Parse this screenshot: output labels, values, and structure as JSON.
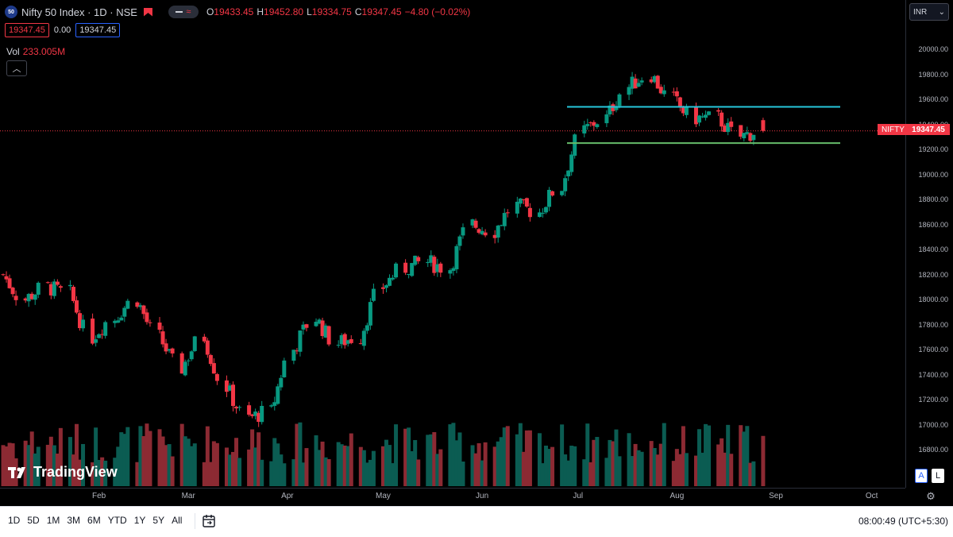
{
  "header": {
    "symbol_badge": "50",
    "symbol_title": "Nifty 50 Index · 1D · NSE",
    "ohlc": {
      "o_label": "O",
      "o_value": "19433.45",
      "h_label": "H",
      "h_value": "19452.80",
      "l_label": "L",
      "l_value": "19334.75",
      "c_label": "C",
      "c_value": "19347.45",
      "change": "−4.80 (−0.02%)"
    },
    "bid": "19347.45",
    "spread": "0.00",
    "ask": "19347.45",
    "volume_label": "Vol",
    "volume_value": "233.005M",
    "currency": "INR"
  },
  "price_scale": {
    "ticks": [
      "20000.00",
      "19800.00",
      "19600.00",
      "19400.00",
      "19200.00",
      "19000.00",
      "18800.00",
      "18600.00",
      "18400.00",
      "18200.00",
      "18000.00",
      "17800.00",
      "17600.00",
      "17400.00",
      "17200.00",
      "17000.00",
      "16800.00"
    ],
    "last_price": "19347.45",
    "last_label": "NIFTY"
  },
  "time_axis": {
    "months": [
      "Feb",
      "Mar",
      "Apr",
      "May",
      "Jun",
      "Jul",
      "Aug",
      "Sep",
      "Oct"
    ]
  },
  "watermark": "TradingView",
  "scale_buttons": {
    "auto": "A",
    "log": "L"
  },
  "bottom_bar": {
    "ranges": [
      "1D",
      "5D",
      "1M",
      "3M",
      "6M",
      "YTD",
      "1Y",
      "5Y",
      "All"
    ],
    "clock": "08:00:49 (UTC+5:30)"
  },
  "colors": {
    "up": "#089981",
    "down": "#f23645",
    "resistance_line": "#26c6da",
    "support_line": "#66bb6a",
    "background": "#000000"
  },
  "icons": {
    "compare": "chevron-up-icon",
    "calendar": "calendar-range-icon",
    "settings": "gear-icon"
  },
  "chart_data": {
    "type": "candlestick",
    "anchors": [
      {
        "date": "2023-01-02",
        "close": 18200
      },
      {
        "date": "2023-01-09",
        "close": 18000
      },
      {
        "date": "2023-01-16",
        "close": 18100
      },
      {
        "date": "2023-01-23",
        "close": 18050
      },
      {
        "date": "2023-01-30",
        "close": 17700
      },
      {
        "date": "2023-02-06",
        "close": 17850
      },
      {
        "date": "2023-02-13",
        "close": 18000
      },
      {
        "date": "2023-02-20",
        "close": 17700
      },
      {
        "date": "2023-02-27",
        "close": 17450
      },
      {
        "date": "2023-03-06",
        "close": 17700
      },
      {
        "date": "2023-03-13",
        "close": 17300
      },
      {
        "date": "2023-03-20",
        "close": 17050
      },
      {
        "date": "2023-03-27",
        "close": 17100
      },
      {
        "date": "2023-04-03",
        "close": 17600
      },
      {
        "date": "2023-04-10",
        "close": 17850
      },
      {
        "date": "2023-04-17",
        "close": 17650
      },
      {
        "date": "2023-04-24",
        "close": 17700
      },
      {
        "date": "2023-05-01",
        "close": 18100
      },
      {
        "date": "2023-05-08",
        "close": 18250
      },
      {
        "date": "2023-05-15",
        "close": 18300
      },
      {
        "date": "2023-05-22",
        "close": 18250
      },
      {
        "date": "2023-05-29",
        "close": 18600
      },
      {
        "date": "2023-06-05",
        "close": 18550
      },
      {
        "date": "2023-06-12",
        "close": 18750
      },
      {
        "date": "2023-06-19",
        "close": 18700
      },
      {
        "date": "2023-06-26",
        "close": 18900
      },
      {
        "date": "2023-07-03",
        "close": 19350
      },
      {
        "date": "2023-07-10",
        "close": 19450
      },
      {
        "date": "2023-07-17",
        "close": 19700
      },
      {
        "date": "2023-07-24",
        "close": 19800
      },
      {
        "date": "2023-07-31",
        "close": 19600
      },
      {
        "date": "2023-08-07",
        "close": 19450
      },
      {
        "date": "2023-08-14",
        "close": 19450
      },
      {
        "date": "2023-08-21",
        "close": 19300
      },
      {
        "date": "2023-08-28",
        "close": 19347.45
      }
    ],
    "horizontal_lines": [
      {
        "name": "resistance",
        "value": 19540,
        "color": "#26c6da"
      },
      {
        "name": "support",
        "value": 19250,
        "color": "#66bb6a"
      }
    ],
    "ylim": [
      16700,
      20100
    ],
    "xlim": [
      "2022-12-26",
      "2023-10-15"
    ]
  }
}
